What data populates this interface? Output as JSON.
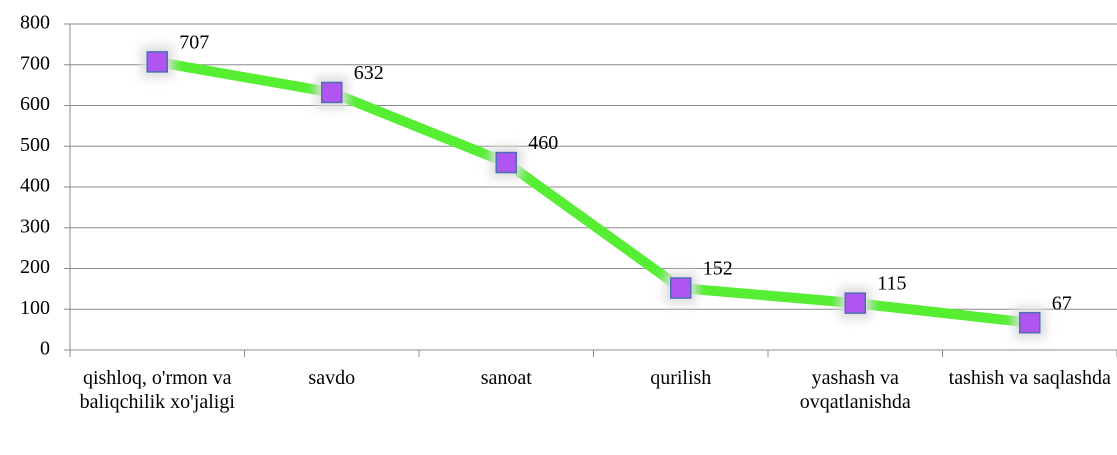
{
  "chart_data": {
    "type": "line",
    "categories": [
      "qishloq, o'rmon va baliqchilik xo'jaligi",
      "savdo",
      "sanoat",
      "qurilish",
      "yashash va ovqatlanishda",
      "tashish va saqlashda"
    ],
    "series": [
      {
        "color": "#55ee33",
        "marker_color": "#b155f0",
        "values": [
          707,
          632,
          460,
          152,
          115,
          67
        ]
      }
    ],
    "ylim": [
      0,
      800
    ],
    "yticks": [
      0,
      100,
      200,
      300,
      400,
      500,
      600,
      700,
      800
    ],
    "grid": true
  }
}
